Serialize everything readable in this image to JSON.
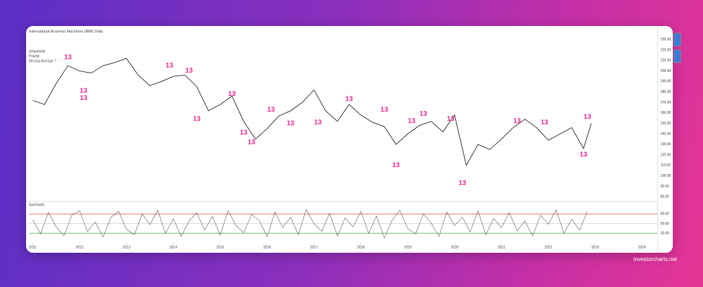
{
  "site": "investorcharts.net",
  "chart_data": [
    {
      "type": "line",
      "title": "International Business Machines (IBM) Daily",
      "indicators": [
        "Sequential",
        "Fractal",
        "Moving Average 7"
      ],
      "x": [
        "2011-01",
        "2011-04",
        "2011-07",
        "2011-10",
        "2012-01",
        "2012-04",
        "2012-07",
        "2012-10",
        "2013-01",
        "2013-04",
        "2013-07",
        "2013-10",
        "2014-01",
        "2014-04",
        "2014-07",
        "2014-10",
        "2015-01",
        "2015-04",
        "2015-07",
        "2015-10",
        "2016-01",
        "2016-04",
        "2016-07",
        "2016-10",
        "2017-01",
        "2017-04",
        "2017-07",
        "2017-10",
        "2018-01",
        "2018-04",
        "2018-07",
        "2018-10",
        "2019-01",
        "2019-04",
        "2019-07",
        "2019-10",
        "2020-01",
        "2020-04",
        "2020-07",
        "2020-10",
        "2021-01",
        "2021-04",
        "2021-07",
        "2021-10",
        "2022-01",
        "2022-04",
        "2022-07",
        "2022-10",
        "2022-12"
      ],
      "series": [
        {
          "name": "IBM",
          "color": "#1e1e1e",
          "values": [
            172,
            168,
            188,
            205,
            200,
            198,
            205,
            208,
            212,
            196,
            186,
            190,
            195,
            196,
            185,
            162,
            168,
            176,
            152,
            135,
            145,
            157,
            162,
            170,
            182,
            162,
            152,
            168,
            158,
            151,
            147,
            130,
            140,
            148,
            152,
            142,
            158,
            110,
            130,
            125,
            135,
            146,
            154,
            146,
            134,
            140,
            146,
            126,
            150
          ]
        }
      ],
      "xlim": [
        "2010-12",
        "2024-05"
      ],
      "ylim": [
        75,
        235
      ],
      "yticks": [
        {
          "value": 230,
          "label": "230.00"
        },
        {
          "value": 220,
          "label": "220.00"
        },
        {
          "value": 210,
          "label": "210.00"
        },
        {
          "value": 200,
          "label": "200.00"
        },
        {
          "value": 190,
          "label": "190.00"
        },
        {
          "value": 180,
          "label": "180.00"
        },
        {
          "value": 170,
          "label": "170.00"
        },
        {
          "value": 160,
          "label": "160.00"
        },
        {
          "value": 150,
          "label": "150.00"
        },
        {
          "value": 140,
          "label": "140.00"
        },
        {
          "value": 130,
          "label": "130.00"
        },
        {
          "value": 120,
          "label": "120.00"
        },
        {
          "value": 110,
          "label": "110.00"
        },
        {
          "value": 100,
          "label": "100.00"
        },
        {
          "value": 90,
          "label": "90.00"
        },
        {
          "value": 80,
          "label": "80.00"
        }
      ],
      "xticks": [
        {
          "value": "2011-01",
          "label": "2011"
        },
        {
          "value": "2012-01",
          "label": "2012"
        },
        {
          "value": "2013-01",
          "label": "2013"
        },
        {
          "value": "2014-01",
          "label": "2014"
        },
        {
          "value": "2015-01",
          "label": "2015"
        },
        {
          "value": "2016-01",
          "label": "2016"
        },
        {
          "value": "2017-01",
          "label": "2017"
        },
        {
          "value": "2018-01",
          "label": "2018"
        },
        {
          "value": "2019-01",
          "label": "2019"
        },
        {
          "value": "2020-01",
          "label": "2020"
        },
        {
          "value": "2021-01",
          "label": "2021"
        },
        {
          "value": "2022-01",
          "label": "2022"
        },
        {
          "value": "2023-01",
          "label": "2023"
        },
        {
          "value": "2024-01",
          "label": "2024"
        }
      ],
      "annotation_color": "#e8288f",
      "annotations": [
        {
          "x": "2011-10",
          "y": 213,
          "text": "13"
        },
        {
          "x": "2012-02",
          "y": 181,
          "text": "13"
        },
        {
          "x": "2012-02",
          "y": 174,
          "text": "13"
        },
        {
          "x": "2013-12",
          "y": 205,
          "text": "13"
        },
        {
          "x": "2014-05",
          "y": 200,
          "text": "13"
        },
        {
          "x": "2015-04",
          "y": 178,
          "text": "13"
        },
        {
          "x": "2014-07",
          "y": 154,
          "text": "13"
        },
        {
          "x": "2015-07",
          "y": 141,
          "text": "13"
        },
        {
          "x": "2015-09",
          "y": 132,
          "text": "13"
        },
        {
          "x": "2016-02",
          "y": 163,
          "text": "13"
        },
        {
          "x": "2016-07",
          "y": 150,
          "text": "13"
        },
        {
          "x": "2017-02",
          "y": 151,
          "text": "13"
        },
        {
          "x": "2017-10",
          "y": 173,
          "text": "13"
        },
        {
          "x": "2018-07",
          "y": 163,
          "text": "13"
        },
        {
          "x": "2018-10",
          "y": 110,
          "text": "13"
        },
        {
          "x": "2019-02",
          "y": 152,
          "text": "13"
        },
        {
          "x": "2019-05",
          "y": 159,
          "text": "13"
        },
        {
          "x": "2019-12",
          "y": 154,
          "text": "13"
        },
        {
          "x": "2020-03",
          "y": 93,
          "text": "13"
        },
        {
          "x": "2021-05",
          "y": 152,
          "text": "13"
        },
        {
          "x": "2021-12",
          "y": 151,
          "text": "13"
        },
        {
          "x": "2022-11",
          "y": 156,
          "text": "13"
        },
        {
          "x": "2022-10",
          "y": 120,
          "text": "13"
        }
      ]
    },
    {
      "type": "line",
      "title": "Stochastic",
      "x": [
        "2011-01",
        "2011-03",
        "2011-05",
        "2011-07",
        "2011-09",
        "2011-11",
        "2012-01",
        "2012-03",
        "2012-05",
        "2012-07",
        "2012-09",
        "2012-11",
        "2013-01",
        "2013-03",
        "2013-05",
        "2013-07",
        "2013-09",
        "2013-11",
        "2014-01",
        "2014-03",
        "2014-05",
        "2014-07",
        "2014-09",
        "2014-11",
        "2015-01",
        "2015-03",
        "2015-05",
        "2015-07",
        "2015-09",
        "2015-11",
        "2016-01",
        "2016-03",
        "2016-05",
        "2016-07",
        "2016-09",
        "2016-11",
        "2017-01",
        "2017-03",
        "2017-05",
        "2017-07",
        "2017-09",
        "2017-11",
        "2018-01",
        "2018-03",
        "2018-05",
        "2018-07",
        "2018-09",
        "2018-11",
        "2019-01",
        "2019-03",
        "2019-05",
        "2019-07",
        "2019-09",
        "2019-11",
        "2020-01",
        "2020-03",
        "2020-05",
        "2020-07",
        "2020-09",
        "2020-11",
        "2021-01",
        "2021-03",
        "2021-05",
        "2021-07",
        "2021-09",
        "2021-11",
        "2022-01",
        "2022-03",
        "2022-05",
        "2022-07",
        "2022-09",
        "2022-11"
      ],
      "series": [
        {
          "name": "%K",
          "color": "#555555",
          "values": [
            62,
            18,
            85,
            40,
            12,
            76,
            90,
            25,
            55,
            8,
            70,
            88,
            33,
            15,
            80,
            47,
            92,
            20,
            65,
            10,
            58,
            84,
            30,
            72,
            14,
            90,
            45,
            22,
            78,
            60,
            9,
            86,
            38,
            70,
            16,
            94,
            50,
            26,
            82,
            12,
            68,
            40,
            88,
            20,
            74,
            6,
            60,
            92,
            35,
            18,
            80,
            52,
            10,
            86,
            44,
            70,
            24,
            90,
            15,
            66,
            38,
            84,
            28,
            58,
            12,
            76,
            48,
            92,
            20,
            64,
            30,
            88
          ]
        }
      ],
      "xlim": [
        "2010-12",
        "2024-05"
      ],
      "ylim": [
        0,
        100
      ],
      "yticks": [
        {
          "value": 80,
          "label": "80.00"
        },
        {
          "value": 50,
          "label": "50.00"
        },
        {
          "value": 20,
          "label": "20.00"
        }
      ],
      "level_colors": [
        "#e0474c",
        "#cccccc",
        "#3cab4a"
      ]
    }
  ]
}
